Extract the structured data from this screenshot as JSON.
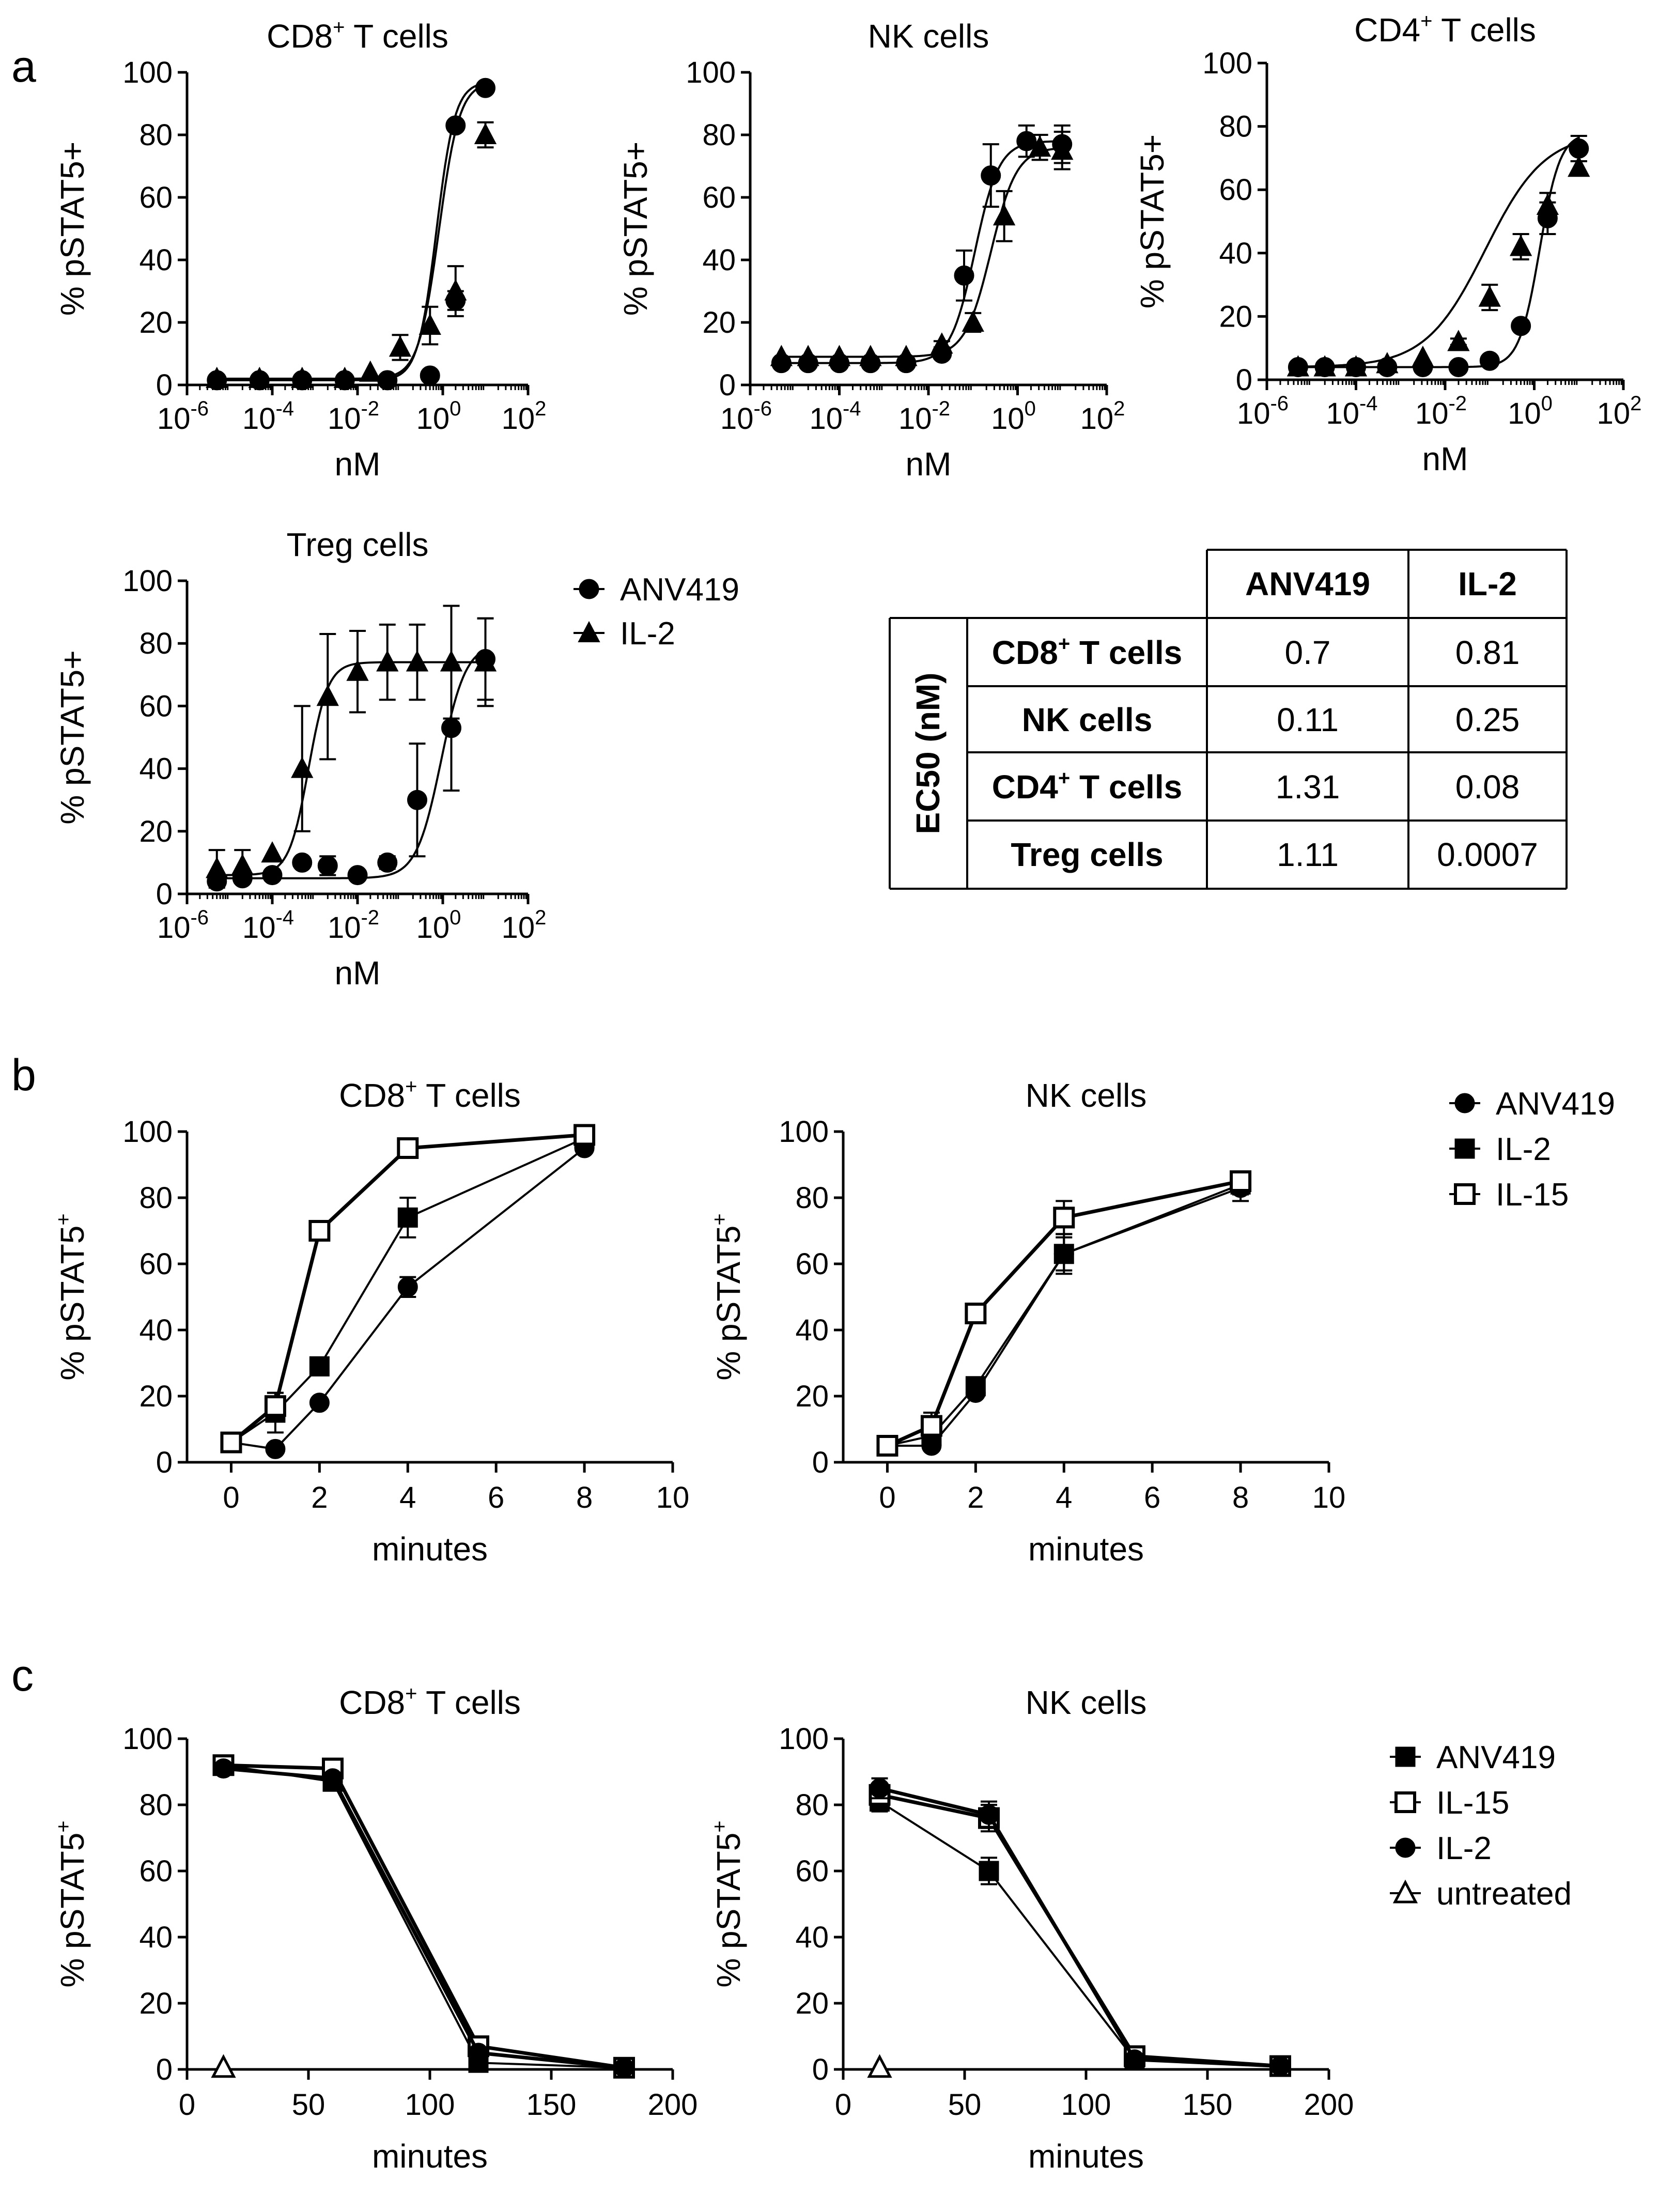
{
  "panels": {
    "a": "a",
    "b": "b",
    "c": "c"
  },
  "legends": {
    "a": [
      {
        "label": "ANV419",
        "marker": "circle-filled"
      },
      {
        "label": "IL-2",
        "marker": "triangle-filled"
      }
    ],
    "b": [
      {
        "label": "ANV419",
        "marker": "circle-filled"
      },
      {
        "label": "IL-2",
        "marker": "square-filled"
      },
      {
        "label": "IL-15",
        "marker": "square-open"
      }
    ],
    "c": [
      {
        "label": "ANV419",
        "marker": "square-filled"
      },
      {
        "label": "IL-15",
        "marker": "square-open"
      },
      {
        "label": "IL-2",
        "marker": "circle-filled"
      },
      {
        "label": "untreated",
        "marker": "triangle-open"
      }
    ]
  },
  "ec50_table": {
    "row_header": "EC50 (nM)",
    "columns": [
      "ANV419",
      "IL-2"
    ],
    "rows": [
      {
        "label": "CD8",
        "sup": "+",
        "suffix": " T cells",
        "values": [
          "0.7",
          "0.81"
        ]
      },
      {
        "label": "NK cells",
        "sup": "",
        "suffix": "",
        "values": [
          "0.11",
          "0.25"
        ]
      },
      {
        "label": "CD4",
        "sup": "+",
        "suffix": " T cells",
        "values": [
          "1.31",
          "0.08"
        ]
      },
      {
        "label": "Treg cells",
        "sup": "",
        "suffix": "",
        "values": [
          "1.11",
          "0.0007"
        ]
      }
    ]
  },
  "chart_data": [
    {
      "id": "a1",
      "type": "scatter",
      "title": "CD8",
      "title_sup": "+",
      "title_suffix": " T cells",
      "xlabel": "nM",
      "ylabel": "% pSTAT5+",
      "xscale": "log",
      "xlim": [
        -6,
        2
      ],
      "ylim": [
        0,
        100
      ],
      "xticks": [
        -6,
        -4,
        -2,
        0,
        2
      ],
      "yticks": [
        0,
        20,
        40,
        60,
        80,
        100
      ],
      "series": [
        {
          "name": "ANV419",
          "marker": "circle-filled",
          "x": [
            -5.3,
            -4.3,
            -3.3,
            -2.3,
            -1.3,
            -0.3,
            0.3,
            1
          ],
          "y": [
            1.5,
            1.5,
            1.5,
            1.5,
            1.5,
            3,
            27,
            95
          ],
          "err": [
            0,
            0,
            0,
            0,
            0,
            0,
            3,
            1
          ],
          "x_extra": [
            0.3
          ],
          "y_extra": [
            83
          ],
          "fit": {
            "bottom": 1.5,
            "top": 97,
            "logec50": -0.15,
            "hill": 2.0
          }
        },
        {
          "name": "IL-2",
          "marker": "triangle-filled",
          "x": [
            -5.3,
            -4.3,
            -3.3,
            -2.3,
            -1.7,
            -1,
            -0.3,
            0.3,
            1
          ],
          "y": [
            2,
            2,
            2,
            2,
            4,
            12,
            19,
            30,
            80
          ],
          "err": [
            0,
            0,
            0,
            0,
            0,
            4,
            6,
            8,
            4
          ],
          "fit": {
            "bottom": 2,
            "top": 97,
            "logec50": -0.09,
            "hill": 1.8
          }
        }
      ]
    },
    {
      "id": "a2",
      "type": "scatter",
      "title": "NK cells",
      "title_sup": "",
      "title_suffix": "",
      "xlabel": "nM",
      "ylabel": "% pSTAT5+",
      "xscale": "log",
      "xlim": [
        -6,
        2
      ],
      "ylim": [
        0,
        100
      ],
      "xticks": [
        -6,
        -4,
        -2,
        0,
        2
      ],
      "yticks": [
        0,
        20,
        40,
        60,
        80,
        100
      ],
      "series": [
        {
          "name": "ANV419",
          "marker": "circle-filled",
          "x": [
            -5.3,
            -4.7,
            -4,
            -3.3,
            -2.5,
            -1.7,
            -1.2,
            -0.6,
            0.2,
            1
          ],
          "y": [
            7,
            7,
            7,
            7,
            7,
            10,
            35,
            67,
            78,
            77
          ],
          "err": [
            0,
            0,
            0,
            0,
            0,
            1,
            8,
            10,
            5,
            6
          ],
          "fit": {
            "bottom": 7,
            "top": 78,
            "logec50": -0.96,
            "hill": 1.6
          }
        },
        {
          "name": "IL-2",
          "marker": "triangle-filled",
          "x": [
            -5.3,
            -4.7,
            -4,
            -3.3,
            -2.5,
            -1.7,
            -1,
            -0.3,
            0.5,
            1
          ],
          "y": [
            9,
            9,
            9,
            9,
            9,
            13,
            20,
            54,
            76,
            75
          ],
          "err": [
            0,
            0,
            0,
            0,
            0,
            1,
            3,
            8,
            4,
            6
          ],
          "fit": {
            "bottom": 9,
            "top": 76,
            "logec50": -0.6,
            "hill": 1.5
          }
        }
      ]
    },
    {
      "id": "a3",
      "type": "scatter",
      "title": "CD4",
      "title_sup": "+",
      "title_suffix": " T cells",
      "xlabel": "nM",
      "ylabel": "% pSTAT5+",
      "xscale": "log",
      "xlim": [
        -6,
        2
      ],
      "ylim": [
        0,
        100
      ],
      "xticks": [
        -6,
        -4,
        -2,
        0,
        2
      ],
      "yticks": [
        0,
        20,
        40,
        60,
        80,
        100
      ],
      "series": [
        {
          "name": "ANV419",
          "marker": "circle-filled",
          "x": [
            -5.3,
            -4.7,
            -4,
            -3.3,
            -2.5,
            -1.7,
            -1,
            -0.3,
            0.3,
            1
          ],
          "y": [
            4,
            4,
            4,
            4,
            4,
            4,
            6,
            17,
            51,
            73
          ],
          "err": [
            0,
            0,
            0,
            0,
            0,
            0,
            0,
            0,
            5,
            4
          ],
          "fit": {
            "bottom": 4,
            "top": 78,
            "logec50": 0.12,
            "hill": 1.9
          }
        },
        {
          "name": "IL-2",
          "marker": "triangle-filled",
          "x": [
            -5.3,
            -4.7,
            -4,
            -3.3,
            -2.5,
            -1.7,
            -1,
            -0.3,
            0.3,
            1
          ],
          "y": [
            4,
            4,
            4,
            5,
            7,
            12,
            26,
            42,
            55,
            67
          ],
          "err": [
            0,
            0,
            0,
            0,
            0,
            1,
            4,
            4,
            4,
            2
          ],
          "fit": {
            "bottom": 4,
            "top": 78,
            "logec50": -1.1,
            "hill": 0.65
          }
        }
      ]
    },
    {
      "id": "a4",
      "type": "scatter",
      "title": "Treg cells",
      "title_sup": "",
      "title_suffix": "",
      "xlabel": "nM",
      "ylabel": "% pSTAT5+",
      "xscale": "log",
      "xlim": [
        -6,
        2
      ],
      "ylim": [
        0,
        100
      ],
      "xticks": [
        -6,
        -4,
        -2,
        0,
        2
      ],
      "yticks": [
        0,
        20,
        40,
        60,
        80,
        100
      ],
      "series": [
        {
          "name": "ANV419",
          "marker": "circle-filled",
          "x": [
            -5.3,
            -4.7,
            -4,
            -3.3,
            -2.7,
            -2,
            -1.3,
            -0.6,
            0.2,
            1
          ],
          "y": [
            4,
            5,
            6,
            10,
            9,
            6,
            10,
            30,
            53,
            75
          ],
          "err": [
            0,
            0,
            0,
            0,
            3,
            0,
            2,
            18,
            20,
            13
          ],
          "fit": {
            "bottom": 5,
            "top": 80,
            "logec50": -0.04,
            "hill": 1.5
          }
        },
        {
          "name": "IL-2",
          "marker": "triangle-filled",
          "x": [
            -5.3,
            -4.7,
            -4,
            -3.3,
            -2.7,
            -2,
            -1.3,
            -0.6,
            0.2,
            1
          ],
          "y": [
            8,
            9,
            13,
            40,
            63,
            71,
            74,
            74,
            74,
            74
          ],
          "err": [
            6,
            5,
            0,
            20,
            20,
            13,
            12,
            12,
            18,
            14
          ],
          "fit": {
            "bottom": 6,
            "top": 74,
            "logec50": -3.15,
            "hill": 1.9
          }
        }
      ]
    },
    {
      "id": "b1",
      "type": "line",
      "title": "CD8",
      "title_sup": "+",
      "title_suffix": " T cells",
      "xlabel": "minutes",
      "ylabel": "% pSTAT5",
      "ylabel_sup": "+",
      "xlim": [
        -1,
        10
      ],
      "ylim": [
        0,
        100
      ],
      "xticks": [
        0,
        2,
        4,
        6,
        8,
        10
      ],
      "yticks": [
        0,
        20,
        40,
        60,
        80,
        100
      ],
      "series": [
        {
          "name": "ANV419",
          "marker": "circle-filled",
          "x": [
            0,
            1,
            2,
            4,
            8
          ],
          "y": [
            6,
            4,
            18,
            53,
            95
          ],
          "err": [
            0,
            0,
            0,
            3,
            0
          ]
        },
        {
          "name": "IL-2",
          "marker": "square-filled",
          "x": [
            0,
            1,
            2,
            4,
            8
          ],
          "y": [
            6,
            15,
            29,
            74,
            98
          ],
          "err": [
            0,
            6,
            0,
            6,
            0
          ]
        },
        {
          "name": "IL-15",
          "marker": "square-open",
          "x": [
            0,
            1,
            2,
            4,
            8
          ],
          "y": [
            6,
            17,
            70,
            95,
            99
          ],
          "err": [
            0,
            4,
            0,
            0,
            0
          ]
        }
      ]
    },
    {
      "id": "b2",
      "type": "line",
      "title": "NK cells",
      "title_sup": "",
      "title_suffix": "",
      "xlabel": "minutes",
      "ylabel": "% pSTAT5",
      "ylabel_sup": "+",
      "xlim": [
        -1,
        10
      ],
      "ylim": [
        0,
        100
      ],
      "xticks": [
        0,
        2,
        4,
        6,
        8,
        10
      ],
      "yticks": [
        0,
        20,
        40,
        60,
        80,
        100
      ],
      "series": [
        {
          "name": "ANV419",
          "marker": "circle-filled",
          "x": [
            0,
            1,
            2,
            4,
            8
          ],
          "y": [
            5,
            5,
            21,
            63,
            83
          ],
          "err": [
            0,
            0,
            0,
            6,
            4
          ]
        },
        {
          "name": "IL-2",
          "marker": "square-filled",
          "x": [
            0,
            1,
            2,
            4,
            8
          ],
          "y": [
            5,
            8,
            23,
            63,
            84
          ],
          "err": [
            0,
            3,
            0,
            5,
            3
          ]
        },
        {
          "name": "IL-15",
          "marker": "square-open",
          "x": [
            0,
            1,
            2,
            4,
            8
          ],
          "y": [
            5,
            11,
            45,
            74,
            85
          ],
          "err": [
            0,
            4,
            2,
            5,
            2
          ]
        }
      ]
    },
    {
      "id": "c1",
      "type": "line",
      "title": "CD8",
      "title_sup": "+",
      "title_suffix": " T cells",
      "xlabel": "minutes",
      "ylabel": "% pSTAT5",
      "ylabel_sup": "+",
      "xlim": [
        0,
        200
      ],
      "ylim": [
        0,
        100
      ],
      "xticks": [
        0,
        50,
        100,
        150,
        200
      ],
      "yticks": [
        0,
        20,
        40,
        60,
        80,
        100
      ],
      "series": [
        {
          "name": "ANV419",
          "marker": "square-filled",
          "x": [
            15,
            60,
            120,
            180
          ],
          "y": [
            92,
            87,
            2,
            0.5
          ],
          "err": [
            0,
            0,
            0,
            0
          ]
        },
        {
          "name": "IL-15",
          "marker": "square-open",
          "x": [
            15,
            60,
            120,
            180
          ],
          "y": [
            92,
            91,
            7,
            0.5
          ],
          "err": [
            0,
            0,
            0,
            0
          ]
        },
        {
          "name": "IL-2",
          "marker": "circle-filled",
          "x": [
            15,
            60,
            120,
            180
          ],
          "y": [
            91,
            88,
            5,
            0.5
          ],
          "err": [
            0,
            0,
            0,
            0
          ]
        },
        {
          "name": "untreated",
          "marker": "triangle-open",
          "x": [
            15
          ],
          "y": [
            0.5
          ],
          "err": [
            0
          ]
        }
      ]
    },
    {
      "id": "c2",
      "type": "line",
      "title": "NK cells",
      "title_sup": "",
      "title_suffix": "",
      "xlabel": "minutes",
      "ylabel": "% pSTAT5",
      "ylabel_sup": "+",
      "xlim": [
        0,
        200
      ],
      "ylim": [
        0,
        100
      ],
      "xticks": [
        0,
        50,
        100,
        150,
        200
      ],
      "yticks": [
        0,
        20,
        40,
        60,
        80,
        100
      ],
      "series": [
        {
          "name": "ANV419",
          "marker": "square-filled",
          "x": [
            15,
            60,
            120,
            180
          ],
          "y": [
            81,
            60,
            3,
            1
          ],
          "err": [
            3,
            4,
            0,
            0
          ]
        },
        {
          "name": "IL-15",
          "marker": "square-open",
          "x": [
            15,
            60,
            120,
            180
          ],
          "y": [
            83,
            76,
            4,
            1
          ],
          "err": [
            3,
            4,
            0,
            0
          ]
        },
        {
          "name": "IL-2",
          "marker": "circle-filled",
          "x": [
            15,
            60,
            120,
            180
          ],
          "y": [
            85,
            77,
            3,
            1
          ],
          "err": [
            3,
            4,
            0,
            0
          ]
        },
        {
          "name": "untreated",
          "marker": "triangle-open",
          "x": [
            15
          ],
          "y": [
            0.5
          ],
          "err": [
            0
          ]
        }
      ]
    }
  ]
}
